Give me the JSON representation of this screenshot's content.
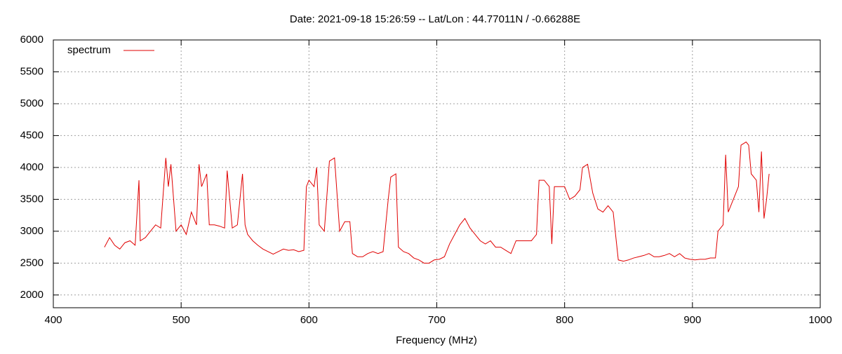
{
  "chart_data": {
    "type": "line",
    "title": "Date: 2021-09-18 15:26:59  --  Lat/Lon : 44.77011N / -0.66288E",
    "x_label": "Frequency (MHz)",
    "xlim": [
      400,
      1000
    ],
    "xticks": [
      400,
      500,
      600,
      700,
      800,
      900,
      1000
    ],
    "ylim": [
      1800,
      6000
    ],
    "yticks": [
      2000,
      2500,
      3000,
      3500,
      4000,
      4500,
      5000,
      5500,
      6000
    ],
    "grid": true,
    "legend": "top-left",
    "series": [
      {
        "name": "spectrum",
        "color": "#e00000",
        "x": [
          440,
          444,
          448,
          452,
          456,
          460,
          464,
          467,
          468,
          472,
          476,
          480,
          484,
          488,
          490,
          492,
          496,
          500,
          504,
          508,
          512,
          514,
          516,
          520,
          522,
          526,
          530,
          534,
          536,
          540,
          544,
          548,
          550,
          552,
          556,
          560,
          564,
          568,
          572,
          576,
          580,
          584,
          588,
          592,
          596,
          598,
          600,
          604,
          606,
          608,
          612,
          616,
          620,
          624,
          628,
          632,
          634,
          638,
          642,
          646,
          650,
          654,
          658,
          662,
          664,
          668,
          670,
          674,
          678,
          682,
          686,
          690,
          694,
          698,
          702,
          706,
          710,
          714,
          718,
          722,
          726,
          730,
          734,
          738,
          742,
          746,
          750,
          754,
          758,
          762,
          766,
          770,
          774,
          778,
          780,
          784,
          788,
          790,
          792,
          796,
          800,
          804,
          808,
          812,
          814,
          818,
          822,
          826,
          830,
          834,
          838,
          842,
          846,
          850,
          854,
          858,
          862,
          866,
          870,
          874,
          878,
          882,
          886,
          890,
          894,
          898,
          902,
          906,
          910,
          914,
          918,
          920,
          924,
          926,
          928,
          932,
          936,
          938,
          942,
          944,
          946,
          950,
          952,
          954,
          956,
          958,
          960
        ],
        "values": [
          2750,
          2900,
          2780,
          2720,
          2820,
          2850,
          2780,
          3800,
          2850,
          2900,
          3000,
          3100,
          3050,
          4150,
          3700,
          4050,
          3000,
          3100,
          2950,
          3300,
          3100,
          4050,
          3700,
          3900,
          3100,
          3100,
          3080,
          3050,
          3950,
          3050,
          3100,
          3900,
          3100,
          2950,
          2850,
          2780,
          2720,
          2680,
          2640,
          2680,
          2720,
          2700,
          2710,
          2680,
          2700,
          3700,
          3800,
          3700,
          4000,
          3100,
          3000,
          4100,
          4150,
          3000,
          3150,
          3150,
          2650,
          2600,
          2600,
          2650,
          2680,
          2650,
          2680,
          3500,
          3850,
          3900,
          2750,
          2680,
          2650,
          2580,
          2550,
          2500,
          2500,
          2550,
          2560,
          2600,
          2800,
          2950,
          3100,
          3200,
          3050,
          2950,
          2850,
          2800,
          2850,
          2750,
          2750,
          2700,
          2650,
          2850,
          2850,
          2850,
          2850,
          2950,
          3800,
          3800,
          3700,
          2800,
          3700,
          3700,
          3700,
          3500,
          3550,
          3650,
          4000,
          4050,
          3600,
          3350,
          3300,
          3400,
          3300,
          2550,
          2530,
          2550,
          2580,
          2600,
          2620,
          2650,
          2600,
          2600,
          2620,
          2650,
          2600,
          2650,
          2580,
          2560,
          2550,
          2560,
          2560,
          2580,
          2580,
          3000,
          3100,
          4200,
          3300,
          3500,
          3700,
          4350,
          4400,
          4350,
          3900,
          3800,
          3300,
          4250,
          3200,
          3500,
          3900
        ]
      }
    ]
  }
}
